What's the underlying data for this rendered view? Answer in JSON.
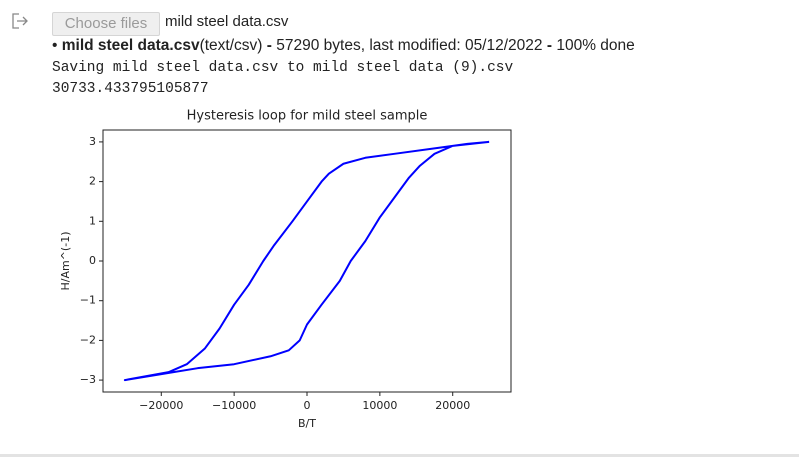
{
  "upload": {
    "button": "Choose files",
    "selected": "mild steel data.csv"
  },
  "file_info": {
    "name": "mild steel data.csv",
    "mime": "(text/csv)",
    "separator": "-",
    "details": "57290 bytes, last modified: 05/12/2022",
    "status": "100% done"
  },
  "output": {
    "line1": "Saving mild steel data.csv to mild steel data (9).csv",
    "line2": "30733.433795105877"
  },
  "chart_data": {
    "type": "line",
    "title": "Hysteresis loop for mild steel sample",
    "x_label": "B/T",
    "y_label": "H/Am^(-1)",
    "xlim": [
      -28000,
      28000
    ],
    "ylim": [
      -3.3,
      3.3
    ],
    "xticks": [
      {
        "value": -20000,
        "label": "−20000"
      },
      {
        "value": -10000,
        "label": "−10000"
      },
      0,
      10000,
      20000
    ],
    "yticks": [
      {
        "value": -3,
        "label": "−3"
      },
      {
        "value": -2,
        "label": "−2"
      },
      {
        "value": -1,
        "label": "−1"
      },
      0,
      1,
      2,
      3
    ],
    "grid": false,
    "series": [
      {
        "color": "#0000ff",
        "x": [
          25000,
          22000,
          18000,
          12000,
          8000,
          5000,
          3000,
          2000,
          0,
          -2000,
          -4500,
          -6000,
          -8000,
          -10000,
          -12000,
          -14000,
          -16500,
          -19000,
          -25000,
          -20000,
          -15000,
          -10000,
          -5000,
          -2500,
          -1000,
          0,
          2000,
          4500,
          6000,
          8000,
          10000,
          12000,
          14000,
          15500,
          17500,
          20000,
          25000
        ],
        "values": [
          3.0,
          2.95,
          2.85,
          2.7,
          2.6,
          2.45,
          2.2,
          2.0,
          1.5,
          1.0,
          0.4,
          0,
          -0.6,
          -1.1,
          -1.7,
          -2.2,
          -2.6,
          -2.8,
          -3.0,
          -2.85,
          -2.7,
          -2.6,
          -2.4,
          -2.25,
          -2.0,
          -1.6,
          -1.1,
          -0.5,
          0,
          0.5,
          1.1,
          1.6,
          2.1,
          2.4,
          2.7,
          2.9,
          3.0
        ]
      }
    ]
  }
}
